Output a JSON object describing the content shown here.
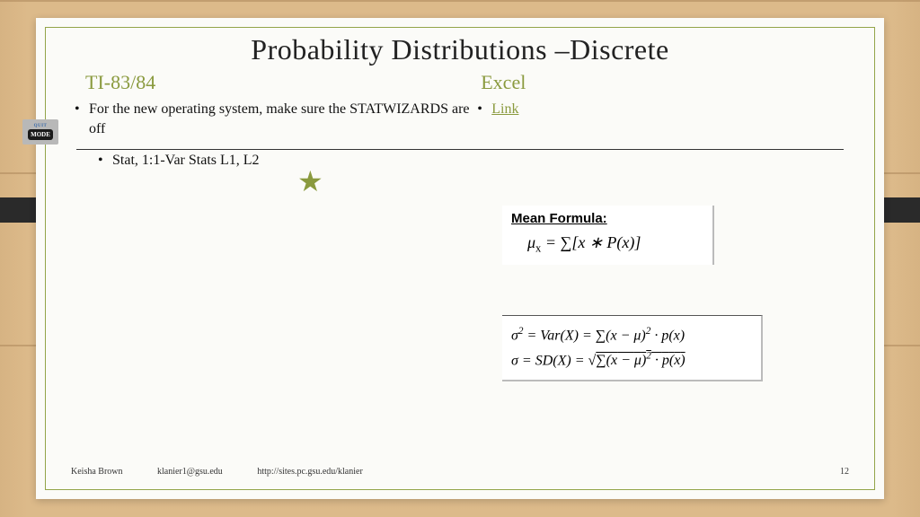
{
  "title": "Probability Distributions –Discrete",
  "left": {
    "heading": "TI-83/84",
    "bullet1": "For the new operating system, make sure the STATWIZARDS are off",
    "bullet2": "Stat, 1:1-Var Stats L1, L2",
    "mode_icon": {
      "top_label": "QUIT",
      "button_label": "MODE"
    }
  },
  "right": {
    "heading": "Excel",
    "link_label": "Link"
  },
  "mean_box": {
    "title": "Mean Formula:",
    "formula_html": "<i>μ</i><sub>x</sub> = ∑[<i>x</i> ∗ <i>P</i>(<i>x</i>)]"
  },
  "var_box": {
    "line1_html": "<i>σ</i><sup>2</sup> = <i>Var</i>(<i>X</i>) = ∑(<i>x</i> − <i>μ</i>)<sup>2</sup> · <i>p</i>(<i>x</i>)",
    "line2_html": "<i>σ</i> = <i>SD</i>(<i>X</i>) = √<span class='sqrt-sym'>∑(<i>x</i> − <i>μ</i>)<sup>2</sup> · <i>p</i>(<i>x</i>)</span>"
  },
  "footer": {
    "author": "Keisha Brown",
    "email": "klanier1@gsu.edu",
    "url": "http://sites.pc.gsu.edu/klanier",
    "page": "12"
  },
  "colors": {
    "accent": "#8a9a3e",
    "border": "#93a449",
    "background_wood": "#e5c596",
    "slide_bg": "#fbfbf8"
  }
}
